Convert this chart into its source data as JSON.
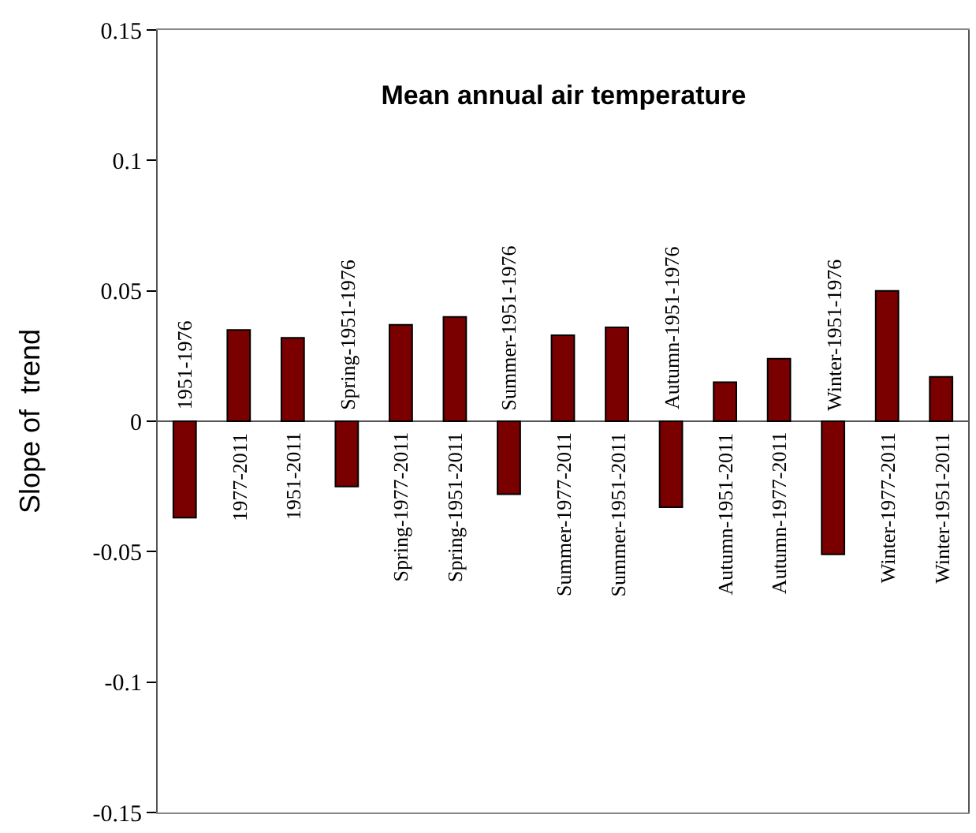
{
  "chart_data": {
    "type": "bar",
    "title": "Mean annual air temperature",
    "ylabel": "Slope of  trend",
    "categories": [
      "1951-1976",
      "1977-2011",
      "1951-2011",
      "Spring-1951-1976",
      "Spring-1977-2011",
      "Spring-1951-2011",
      "Summer-1951-1976",
      "Summer-1977-2011",
      "Summer-1951-2011",
      "Autumn-1951-1976",
      "Autumn-1951-2011",
      "Autumn-1977-2011",
      "Winter-1951-1976",
      "Winter-1977-2011",
      "Winter-1951-2011"
    ],
    "values": [
      -0.037,
      0.035,
      0.032,
      -0.025,
      0.037,
      0.04,
      -0.028,
      0.033,
      0.036,
      -0.033,
      0.015,
      0.024,
      -0.051,
      0.05,
      0.017
    ],
    "color": "#7a0000",
    "ylim": [
      -0.15,
      0.15
    ],
    "yticks": [
      -0.15,
      -0.1,
      -0.05,
      0,
      0.05,
      0.1,
      0.15
    ]
  }
}
